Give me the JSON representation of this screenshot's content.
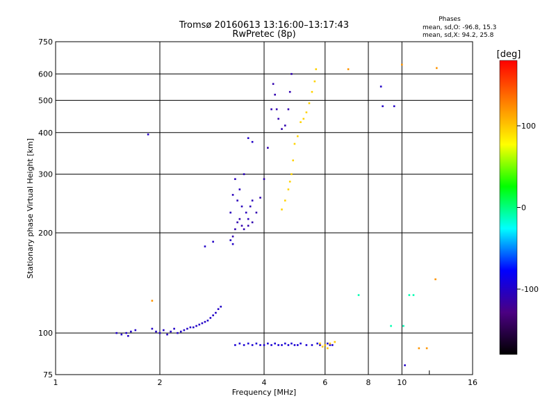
{
  "chart_data": {
    "type": "scatter",
    "title": "Tromsø 20160613 13:16:00–13:17:43",
    "subtitle": "RwPretec (8p)",
    "xlabel": "Frequency [MHz]",
    "ylabel": "Stationary phase Virtual Height [km]",
    "x_scale": "log",
    "y_scale": "log",
    "xlim": [
      1,
      16
    ],
    "ylim": [
      75,
      750
    ],
    "x_ticks": [
      1,
      2,
      4,
      6,
      8,
      10,
      16
    ],
    "y_ticks": [
      75,
      100,
      200,
      300,
      400,
      500,
      600,
      750
    ],
    "grid": true,
    "stats": {
      "heading": "Phases",
      "line_o": "mean, sd,O: -96.8, 15.3",
      "line_x": "mean, sd,X:  94.2, 25.8"
    },
    "colorbar": {
      "label": "[deg]",
      "range": [
        -180,
        180
      ],
      "ticks": [
        100,
        0,
        -100
      ],
      "colormap": "rainbow",
      "colors": [
        "#000000",
        "#4b0082",
        "#0000ff",
        "#00ffff",
        "#00ff00",
        "#ffff00",
        "#ff8000",
        "#ff0000"
      ]
    },
    "series": [
      {
        "phase": -100,
        "x": [
          1.5,
          1.55,
          1.6,
          1.62,
          1.65,
          1.7,
          1.9,
          1.95,
          2.0,
          2.05,
          2.1,
          2.15,
          2.2,
          2.25,
          2.3,
          2.35,
          2.4,
          2.45,
          2.5,
          2.55,
          2.6,
          2.65,
          2.7,
          2.75,
          2.8,
          2.85,
          2.9,
          2.95,
          3.0
        ],
        "y": [
          100,
          99,
          100,
          98,
          101,
          102,
          103,
          101,
          100,
          102,
          99,
          101,
          103,
          100,
          101,
          102,
          103,
          104,
          104,
          105,
          106,
          107,
          108,
          109,
          111,
          113,
          115,
          118,
          120
        ]
      },
      {
        "phase": -110,
        "x": [
          3.25,
          3.3,
          3.35,
          3.4,
          3.45,
          3.5,
          3.6,
          3.7,
          3.8,
          3.9,
          4.0,
          4.1,
          4.2,
          4.25,
          4.3,
          4.35,
          4.4,
          4.5,
          4.6,
          4.7,
          4.75,
          4.8
        ],
        "y": [
          195,
          205,
          215,
          220,
          210,
          205,
          210,
          215,
          230,
          255,
          290,
          360,
          470,
          560,
          520,
          470,
          440,
          410,
          420,
          470,
          530,
          600
        ]
      },
      {
        "phase": -105,
        "x": [
          3.2,
          3.25,
          3.3,
          3.35,
          3.4,
          3.45,
          3.5,
          3.55,
          3.6,
          3.65,
          3.7
        ],
        "y": [
          230,
          260,
          290,
          250,
          270,
          240,
          300,
          230,
          220,
          240,
          250
        ]
      },
      {
        "phase": -95,
        "x": [
          3.3,
          3.4,
          3.5,
          3.6,
          3.7,
          3.8,
          3.9,
          4.0,
          4.1,
          4.2,
          4.3,
          4.4,
          4.5,
          4.6,
          4.7,
          4.8,
          4.9,
          5.0,
          5.1,
          5.3,
          5.5,
          5.7,
          5.8,
          6.0,
          6.1,
          6.2,
          6.3
        ],
        "y": [
          92,
          93,
          92,
          93,
          92,
          93,
          92,
          92,
          93,
          92,
          93,
          92,
          92,
          93,
          92,
          93,
          92,
          92,
          93,
          92,
          92,
          93,
          92,
          92,
          93,
          92,
          92
        ]
      },
      {
        "phase": 95,
        "x": [
          4.5,
          4.6,
          4.7,
          4.75,
          4.8,
          4.85,
          4.9,
          5.0,
          5.1,
          5.2,
          5.3,
          5.4,
          5.5,
          5.6,
          5.65
        ],
        "y": [
          235,
          250,
          270,
          285,
          300,
          330,
          370,
          390,
          430,
          440,
          460,
          490,
          530,
          570,
          620
        ]
      },
      {
        "phase": 100,
        "x": [
          5.8,
          5.9,
          6.0,
          6.1,
          6.2,
          6.4
        ],
        "y": [
          93,
          91,
          92,
          90,
          93,
          94
        ]
      },
      {
        "phase": -100,
        "x": [
          1.85,
          2.7,
          2.85,
          3.2,
          3.25,
          3.6,
          3.7,
          8.7,
          8.8,
          9.5,
          10.2
        ],
        "y": [
          395,
          182,
          188,
          190,
          185,
          385,
          375,
          550,
          480,
          480,
          80
        ]
      },
      {
        "phase": 120,
        "x": [
          1.9,
          7.0,
          10.0,
          11.2,
          11.8,
          12.5,
          12.6
        ],
        "y": [
          125,
          620,
          640,
          90,
          90,
          145,
          625
        ]
      },
      {
        "phase": -10,
        "x": [
          7.5,
          9.3,
          10.1,
          10.5,
          10.8
        ],
        "y": [
          130,
          105,
          105,
          130,
          130
        ]
      }
    ]
  }
}
